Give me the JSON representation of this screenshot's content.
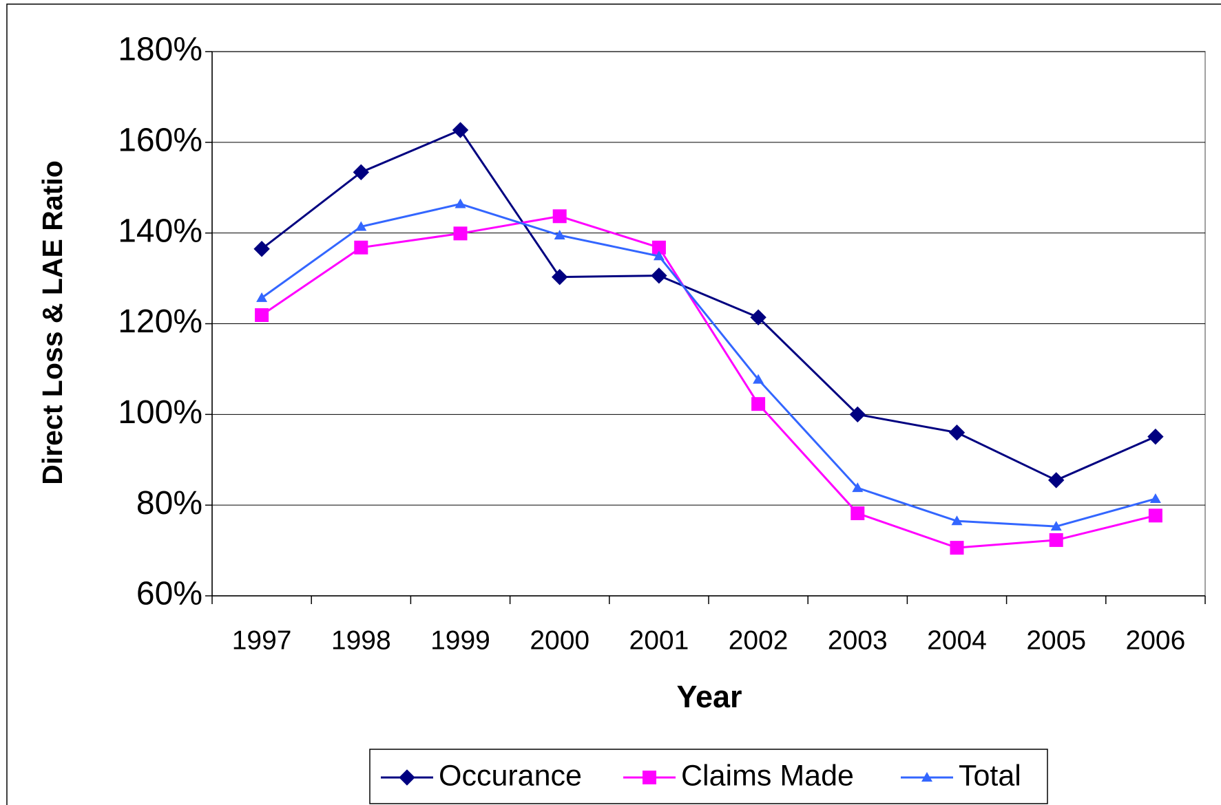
{
  "chart_data": {
    "type": "line",
    "x_label": "Year",
    "y_label": "Direct Loss & LAE Ratio",
    "categories": [
      "1997",
      "1998",
      "1999",
      "2000",
      "2001",
      "2002",
      "2003",
      "2004",
      "2005",
      "2006"
    ],
    "series": [
      {
        "name": "Occurance",
        "color": "#000080",
        "marker": "diamond",
        "values": [
          136.5,
          153.4,
          162.7,
          130.3,
          130.6,
          121.4,
          100,
          96,
          85.5,
          95.1
        ]
      },
      {
        "name": "Claims Made",
        "color": "#ff00ff",
        "marker": "square",
        "values": [
          121.9,
          136.8,
          139.9,
          143.7,
          136.8,
          102.3,
          78.2,
          70.6,
          72.3,
          77.7
        ]
      },
      {
        "name": "Total",
        "color": "#3366ff",
        "marker": "triangle",
        "values": [
          125.7,
          141.4,
          146.4,
          139.5,
          134.9,
          107.7,
          83.8,
          76.5,
          75.3,
          81.4
        ]
      }
    ],
    "ylim": [
      60,
      180
    ],
    "yticks": [
      {
        "value": 60,
        "label": "60%"
      },
      {
        "value": 80,
        "label": "80%"
      },
      {
        "value": 100,
        "label": "100%"
      },
      {
        "value": 120,
        "label": "120%"
      },
      {
        "value": 140,
        "label": "140%"
      },
      {
        "value": 160,
        "label": "160%"
      },
      {
        "value": 180,
        "label": "180%"
      }
    ],
    "grid": true,
    "legend": "bottom"
  }
}
